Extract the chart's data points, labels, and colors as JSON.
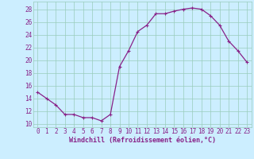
{
  "x": [
    0,
    1,
    2,
    3,
    4,
    5,
    6,
    7,
    8,
    9,
    10,
    11,
    12,
    13,
    14,
    15,
    16,
    17,
    18,
    19,
    20,
    21,
    22,
    23
  ],
  "y": [
    15,
    14,
    13,
    11.5,
    11.5,
    11,
    11,
    10.5,
    11.5,
    19,
    21.5,
    24.5,
    25.5,
    27.3,
    27.3,
    27.7,
    28,
    28.2,
    28,
    27,
    25.5,
    23,
    21.5,
    19.7
  ],
  "line_color": "#882288",
  "marker": "+",
  "marker_size": 3,
  "marker_linewidth": 0.8,
  "background_color": "#cceeff",
  "grid_color": "#99ccbb",
  "xlabel": "Windchill (Refroidissement éolien,°C)",
  "xlabel_fontsize": 6.0,
  "xlim": [
    -0.5,
    23.5
  ],
  "ylim": [
    9.5,
    29.2
  ],
  "yticks": [
    10,
    12,
    14,
    16,
    18,
    20,
    22,
    24,
    26,
    28
  ],
  "xticks": [
    0,
    1,
    2,
    3,
    4,
    5,
    6,
    7,
    8,
    9,
    10,
    11,
    12,
    13,
    14,
    15,
    16,
    17,
    18,
    19,
    20,
    21,
    22,
    23
  ],
  "tick_fontsize": 5.5,
  "line_width": 0.9
}
